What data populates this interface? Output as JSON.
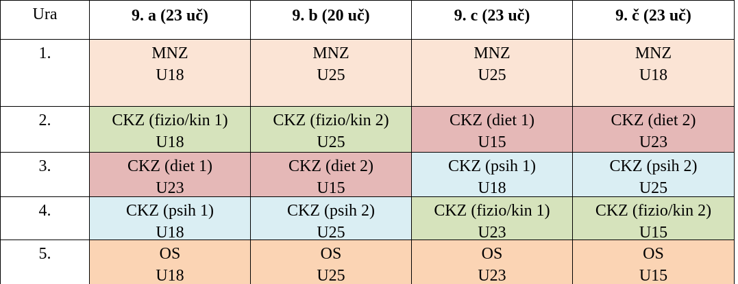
{
  "table": {
    "header": [
      "Ura",
      "9. a (23 uč)",
      "9. b (20 uč)",
      "9. c (23 uč)",
      "9. č (23 uč)"
    ],
    "rows": [
      {
        "period": "1.",
        "cells": [
          {
            "subject": "MNZ",
            "room": "U18"
          },
          {
            "subject": "MNZ",
            "room": "U25"
          },
          {
            "subject": "MNZ",
            "room": "U25"
          },
          {
            "subject": "MNZ",
            "room": "U18"
          }
        ]
      },
      {
        "period": "2.",
        "cells": [
          {
            "subject": "CKZ (fizio/kin 1)",
            "room": "U18"
          },
          {
            "subject": "CKZ (fizio/kin 2)",
            "room": "U25"
          },
          {
            "subject": "CKZ (diet 1)",
            "room": "U15"
          },
          {
            "subject": "CKZ (diet 2)",
            "room": "U23"
          }
        ]
      },
      {
        "period": "3.",
        "cells": [
          {
            "subject": "CKZ (diet 1)",
            "room": "U23"
          },
          {
            "subject": "CKZ (diet 2)",
            "room": "U15"
          },
          {
            "subject": "CKZ (psih 1)",
            "room": "U18"
          },
          {
            "subject": "CKZ (psih 2)",
            "room": "U25"
          }
        ]
      },
      {
        "period": "4.",
        "cells": [
          {
            "subject": "CKZ (psih 1)",
            "room": "U18"
          },
          {
            "subject": "CKZ (psih 2)",
            "room": "U25"
          },
          {
            "subject": "CKZ (fizio/kin 1)",
            "room": "U23"
          },
          {
            "subject": "CKZ (fizio/kin 2)",
            "room": "U15"
          }
        ]
      },
      {
        "period": "5.",
        "cells": [
          {
            "subject": "OS",
            "room": "U18"
          },
          {
            "subject": "OS",
            "room": "U25"
          },
          {
            "subject": "OS",
            "room": "U23"
          },
          {
            "subject": "OS",
            "room": "U15"
          }
        ]
      }
    ]
  }
}
